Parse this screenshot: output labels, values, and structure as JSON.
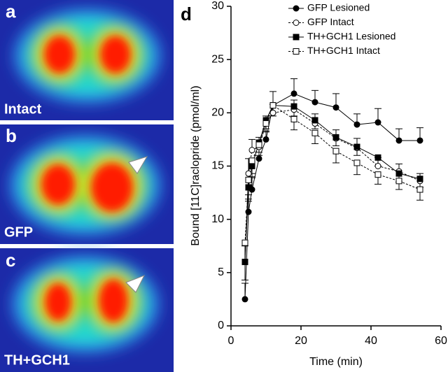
{
  "panels": [
    {
      "letter": "a",
      "label": "Intact"
    },
    {
      "letter": "b",
      "label": "GFP"
    },
    {
      "letter": "c",
      "label": "TH+GCH1"
    }
  ],
  "chart_data": {
    "type": "line",
    "letter": "d",
    "x_label": "Time (min)",
    "y_label": "Bound [11C]raclopride (pmol/ml)",
    "xlim": [
      0,
      60
    ],
    "xticks": [
      0,
      20,
      40,
      60
    ],
    "ylim": [
      0,
      30
    ],
    "yticks": [
      0,
      5,
      10,
      15,
      20,
      25,
      30
    ],
    "legend": "top-right",
    "x": [
      4,
      5,
      6,
      8,
      10,
      12,
      18,
      24,
      30,
      36,
      42,
      48,
      54
    ],
    "series": [
      {
        "name": "GFP Lesioned",
        "color": "#000000",
        "marker": "circle",
        "filled": true,
        "dashed": false,
        "error_direction": "up",
        "values": [
          2.5,
          10.7,
          12.8,
          15.7,
          17.5,
          20.7,
          21.8,
          21.0,
          20.5,
          18.9,
          19.1,
          17.4,
          17.4
        ],
        "errors": [
          1.5,
          1.2,
          1.2,
          1.0,
          0.8,
          1.3,
          1.4,
          1.1,
          1.3,
          1.0,
          1.3,
          1.1,
          1.2
        ]
      },
      {
        "name": "GFP Intact",
        "color": "#000000",
        "marker": "circle",
        "filled": false,
        "dashed": true,
        "error_direction": "up",
        "values": [
          6.0,
          14.3,
          16.5,
          16.8,
          19.0,
          20.0,
          20.3,
          19.0,
          17.6,
          16.7,
          15.0,
          14.5,
          13.6
        ],
        "errors": [
          1.5,
          1.4,
          1.0,
          0.9,
          0.7,
          0.8,
          0.9,
          0.9,
          0.8,
          0.9,
          0.8,
          0.7,
          0.7
        ]
      },
      {
        "name": "TH+GCH1 Lesioned",
        "color": "#000000",
        "marker": "square",
        "filled": true,
        "dashed": false,
        "error_direction": "down",
        "values": [
          6.0,
          13.0,
          15.0,
          17.2,
          19.3,
          20.7,
          20.6,
          19.3,
          17.7,
          16.8,
          15.8,
          14.3,
          13.8
        ],
        "errors": [
          1.7,
          1.3,
          1.1,
          0.9,
          0.8,
          0.7,
          0.9,
          0.8,
          0.8,
          0.8,
          0.8,
          0.8,
          0.8
        ]
      },
      {
        "name": "TH+GCH1 Intact",
        "color": "#000000",
        "marker": "square",
        "filled": false,
        "dashed": true,
        "error_direction": "down",
        "values": [
          7.8,
          13.7,
          15.5,
          17.0,
          19.0,
          20.7,
          19.4,
          18.1,
          16.4,
          15.3,
          14.2,
          13.6,
          12.8
        ],
        "errors": [
          3.5,
          1.4,
          1.2,
          1.0,
          0.8,
          1.0,
          1.0,
          1.0,
          1.1,
          1.1,
          0.9,
          0.8,
          1.0
        ]
      }
    ]
  }
}
